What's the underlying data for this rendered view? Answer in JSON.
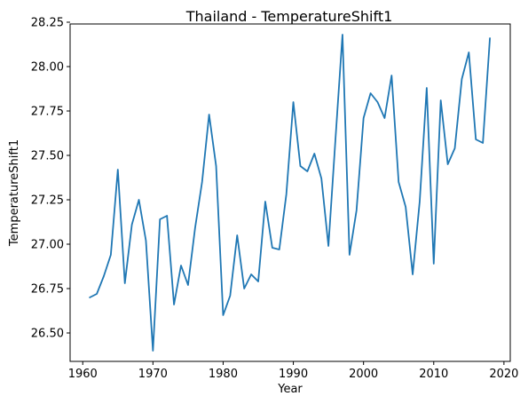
{
  "chart_data": {
    "type": "line",
    "title": "Thailand - TemperatureShift1",
    "xlabel": "Year",
    "ylabel": "TemperatureShift1",
    "xlim": [
      1958.2,
      2020.9
    ],
    "ylim": [
      26.34,
      28.24
    ],
    "xticks": [
      1960,
      1970,
      1980,
      1990,
      2000,
      2010,
      2020
    ],
    "yticks": [
      26.5,
      26.75,
      27.0,
      27.25,
      27.5,
      27.75,
      28.0,
      28.25
    ],
    "ytick_labels": [
      "26.50",
      "26.75",
      "27.00",
      "27.25",
      "27.50",
      "27.75",
      "28.00",
      "28.25"
    ],
    "grid": false,
    "line_color": "#1f77b4",
    "series": [
      {
        "x": [
          1961,
          1962,
          1963,
          1964,
          1965,
          1966,
          1967,
          1968,
          1969,
          1970,
          1971,
          1972,
          1973,
          1974,
          1975,
          1976,
          1977,
          1978,
          1979,
          1980,
          1981,
          1982,
          1983,
          1984,
          1985,
          1986,
          1987,
          1988,
          1989,
          1990,
          1991,
          1992,
          1993,
          1994,
          1995,
          1996,
          1997,
          1998,
          1999,
          2000,
          2001,
          2002,
          2003,
          2004,
          2005,
          2006,
          2007,
          2008,
          2009,
          2010,
          2011,
          2012,
          2013,
          2014,
          2015,
          2016,
          2017,
          2018
        ],
        "values": [
          26.7,
          26.72,
          26.82,
          26.94,
          27.42,
          26.78,
          27.11,
          27.25,
          27.02,
          26.4,
          27.14,
          27.16,
          26.66,
          26.88,
          26.77,
          27.09,
          27.35,
          27.73,
          27.44,
          26.6,
          26.71,
          27.05,
          26.75,
          26.83,
          26.79,
          27.24,
          26.98,
          26.97,
          27.28,
          27.8,
          27.44,
          27.41,
          27.51,
          27.37,
          26.99,
          27.59,
          28.18,
          26.94,
          27.19,
          27.71,
          27.85,
          27.8,
          27.71,
          27.95,
          27.35,
          27.21,
          26.83,
          27.24,
          27.88,
          26.89,
          27.81,
          27.45,
          27.54,
          27.93,
          28.08,
          27.59,
          27.57,
          28.16
        ]
      }
    ]
  }
}
